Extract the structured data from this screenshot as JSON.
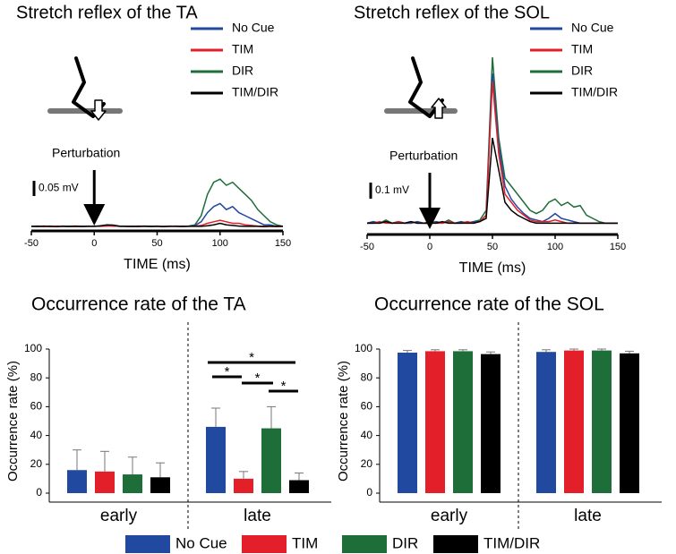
{
  "chart_data": [
    {
      "type": "line",
      "title": "Stretch reflex of the TA",
      "xlabel": "TIME (ms)",
      "x": [
        -50,
        -45,
        -40,
        -35,
        -30,
        -25,
        -20,
        -15,
        -10,
        -5,
        0,
        5,
        10,
        15,
        20,
        25,
        30,
        35,
        40,
        45,
        50,
        55,
        60,
        65,
        70,
        75,
        80,
        85,
        90,
        95,
        100,
        105,
        110,
        115,
        120,
        125,
        130,
        135,
        140,
        145,
        150
      ],
      "xlim": [
        -50,
        150
      ],
      "xticks": [
        -50,
        0,
        50,
        100,
        150
      ],
      "ylim": [
        0,
        0.2
      ],
      "scale_bar": {
        "value": 0.05,
        "label": "0.05 mV"
      },
      "annotation": {
        "text": "Perturbation",
        "x": 0
      },
      "series": [
        {
          "name": "No Cue",
          "color": "#2149a0",
          "values": [
            0.015,
            0.016,
            0.015,
            0.014,
            0.015,
            0.016,
            0.015,
            0.015,
            0.014,
            0.015,
            0.015,
            0.016,
            0.018,
            0.016,
            0.015,
            0.015,
            0.014,
            0.015,
            0.015,
            0.015,
            0.015,
            0.015,
            0.016,
            0.015,
            0.015,
            0.016,
            0.018,
            0.03,
            0.06,
            0.08,
            0.09,
            0.07,
            0.08,
            0.06,
            0.05,
            0.04,
            0.03,
            0.02,
            0.02,
            0.015,
            0.015
          ]
        },
        {
          "name": "TIM",
          "color": "#e3202a",
          "values": [
            0.015,
            0.015,
            0.014,
            0.015,
            0.016,
            0.015,
            0.015,
            0.014,
            0.015,
            0.015,
            0.016,
            0.015,
            0.017,
            0.016,
            0.015,
            0.015,
            0.015,
            0.014,
            0.015,
            0.015,
            0.016,
            0.015,
            0.015,
            0.015,
            0.014,
            0.015,
            0.016,
            0.018,
            0.025,
            0.03,
            0.035,
            0.03,
            0.025,
            0.025,
            0.02,
            0.018,
            0.016,
            0.015,
            0.015,
            0.014,
            0.015
          ]
        },
        {
          "name": "DIR",
          "color": "#1e6e3a",
          "values": [
            0.015,
            0.014,
            0.015,
            0.016,
            0.015,
            0.015,
            0.014,
            0.015,
            0.015,
            0.016,
            0.015,
            0.015,
            0.016,
            0.017,
            0.015,
            0.015,
            0.015,
            0.016,
            0.015,
            0.014,
            0.015,
            0.015,
            0.015,
            0.016,
            0.015,
            0.016,
            0.02,
            0.05,
            0.12,
            0.16,
            0.17,
            0.15,
            0.16,
            0.14,
            0.12,
            0.1,
            0.07,
            0.05,
            0.03,
            0.02,
            0.015
          ]
        },
        {
          "name": "TIM/DIR",
          "color": "#000000",
          "values": [
            0.015,
            0.015,
            0.016,
            0.015,
            0.014,
            0.015,
            0.015,
            0.016,
            0.015,
            0.015,
            0.015,
            0.017,
            0.02,
            0.019,
            0.016,
            0.015,
            0.015,
            0.015,
            0.016,
            0.015,
            0.015,
            0.014,
            0.015,
            0.015,
            0.015,
            0.015,
            0.015,
            0.015,
            0.017,
            0.02,
            0.025,
            0.02,
            0.018,
            0.016,
            0.015,
            0.015,
            0.015,
            0.014,
            0.015,
            0.015,
            0.015
          ]
        }
      ]
    },
    {
      "type": "line",
      "title": "Stretch reflex of the SOL",
      "xlabel": "TIME (ms)",
      "x": [
        -50,
        -45,
        -40,
        -35,
        -30,
        -25,
        -20,
        -15,
        -10,
        -5,
        0,
        5,
        10,
        15,
        20,
        25,
        30,
        35,
        40,
        45,
        50,
        55,
        60,
        65,
        70,
        75,
        80,
        85,
        90,
        95,
        100,
        105,
        110,
        115,
        120,
        125,
        130,
        135,
        140,
        145,
        150
      ],
      "xlim": [
        -50,
        150
      ],
      "xticks": [
        -50,
        0,
        50,
        100,
        150
      ],
      "ylim": [
        0,
        1.2
      ],
      "scale_bar": {
        "value": 0.1,
        "label": "0.1 mV"
      },
      "annotation": {
        "text": "Perturbation",
        "x": 0
      },
      "series": [
        {
          "name": "No Cue",
          "color": "#2149a0",
          "values": [
            0.07,
            0.08,
            0.07,
            0.08,
            0.07,
            0.08,
            0.07,
            0.07,
            0.08,
            0.07,
            0.07,
            0.08,
            0.07,
            0.08,
            0.07,
            0.08,
            0.07,
            0.08,
            0.08,
            0.12,
            1.0,
            0.55,
            0.3,
            0.22,
            0.17,
            0.13,
            0.1,
            0.09,
            0.08,
            0.1,
            0.13,
            0.1,
            0.09,
            0.08,
            0.07,
            0.07,
            0.07,
            0.07,
            0.07,
            0.07,
            0.07
          ]
        },
        {
          "name": "TIM",
          "color": "#e3202a",
          "values": [
            0.07,
            0.07,
            0.08,
            0.07,
            0.07,
            0.08,
            0.07,
            0.08,
            0.07,
            0.07,
            0.08,
            0.07,
            0.07,
            0.08,
            0.07,
            0.07,
            0.08,
            0.07,
            0.08,
            0.12,
            0.95,
            0.5,
            0.25,
            0.2,
            0.15,
            0.12,
            0.09,
            0.08,
            0.08,
            0.08,
            0.09,
            0.08,
            0.07,
            0.07,
            0.07,
            0.07,
            0.07,
            0.07,
            0.07,
            0.07,
            0.07
          ]
        },
        {
          "name": "DIR",
          "color": "#1e6e3a",
          "values": [
            0.07,
            0.08,
            0.07,
            0.09,
            0.07,
            0.08,
            0.07,
            0.07,
            0.08,
            0.07,
            0.07,
            0.08,
            0.07,
            0.09,
            0.07,
            0.08,
            0.07,
            0.08,
            0.09,
            0.15,
            1.1,
            0.6,
            0.35,
            0.3,
            0.25,
            0.2,
            0.15,
            0.13,
            0.15,
            0.2,
            0.22,
            0.18,
            0.2,
            0.17,
            0.18,
            0.12,
            0.1,
            0.08,
            0.07,
            0.07,
            0.07
          ]
        },
        {
          "name": "TIM/DIR",
          "color": "#000000",
          "values": [
            0.07,
            0.07,
            0.07,
            0.08,
            0.07,
            0.07,
            0.07,
            0.08,
            0.07,
            0.07,
            0.07,
            0.07,
            0.08,
            0.07,
            0.07,
            0.07,
            0.07,
            0.07,
            0.08,
            0.1,
            0.6,
            0.4,
            0.2,
            0.15,
            0.12,
            0.1,
            0.08,
            0.07,
            0.07,
            0.07,
            0.07,
            0.07,
            0.07,
            0.07,
            0.07,
            0.07,
            0.07,
            0.07,
            0.07,
            0.07,
            0.07
          ]
        }
      ]
    },
    {
      "type": "bar",
      "title": "Occurrence rate of the TA",
      "ylabel": "Occurrence rate (%)",
      "categories": [
        "early",
        "late"
      ],
      "ylim": [
        0,
        100
      ],
      "yticks": [
        0,
        20,
        40,
        60,
        80,
        100
      ],
      "annotations": [
        "*",
        "*",
        "*",
        "*"
      ],
      "series": [
        {
          "name": "No Cue",
          "color": "#2149a0",
          "values": [
            16,
            46
          ],
          "errors": [
            14,
            13
          ]
        },
        {
          "name": "TIM",
          "color": "#e3202a",
          "values": [
            15,
            10
          ],
          "errors": [
            14,
            5
          ]
        },
        {
          "name": "DIR",
          "color": "#1e6e3a",
          "values": [
            13,
            45
          ],
          "errors": [
            12,
            15
          ]
        },
        {
          "name": "TIM/DIR",
          "color": "#000000",
          "values": [
            11,
            9
          ],
          "errors": [
            10,
            5
          ]
        }
      ]
    },
    {
      "type": "bar",
      "title": "Occurrence rate of the SOL",
      "ylabel": "Occurrence rate (%)",
      "categories": [
        "early",
        "late"
      ],
      "ylim": [
        0,
        100
      ],
      "yticks": [
        0,
        20,
        40,
        60,
        80,
        100
      ],
      "series": [
        {
          "color": "#2149a0",
          "values": [
            97.5,
            98
          ],
          "errors": [
            1.5,
            1.5
          ]
        },
        {
          "color": "#e3202a",
          "values": [
            98.5,
            99
          ],
          "errors": [
            1,
            1
          ]
        },
        {
          "color": "#1e6e3a",
          "values": [
            98.5,
            99
          ],
          "errors": [
            1,
            1
          ]
        },
        {
          "color": "#000000",
          "values": [
            96.5,
            97
          ],
          "errors": [
            1.5,
            1.5
          ]
        }
      ]
    }
  ]
}
